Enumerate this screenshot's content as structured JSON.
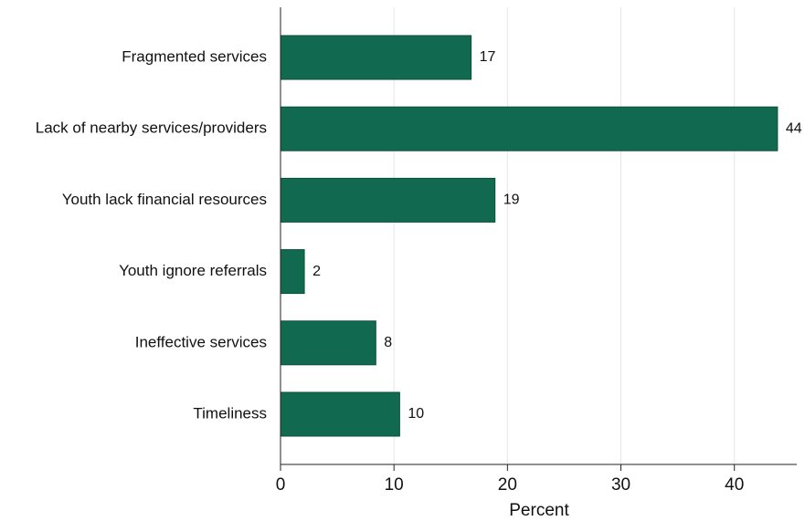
{
  "chart_data": {
    "type": "bar",
    "orientation": "horizontal",
    "categories": [
      "Fragmented services",
      "Lack of nearby services/providers",
      "Youth lack financial resources",
      "Youth ignore referrals",
      "Ineffective services",
      "Timeliness"
    ],
    "values": [
      16.8,
      43.8,
      18.9,
      2.1,
      8.4,
      10.5
    ],
    "data_labels": [
      "17",
      "44",
      "19",
      "2",
      "8",
      "10"
    ],
    "title": "",
    "xlabel": "Percent",
    "ylabel": "",
    "xlim": [
      0,
      45.5
    ],
    "x_ticks": [
      0,
      10,
      20,
      30,
      40
    ],
    "x_tick_labels": [
      "0",
      "10",
      "20",
      "30",
      "40"
    ],
    "grid": "vertical",
    "colors": {
      "bar": "#116a50",
      "bar_edge": "#0b4f3b",
      "grid": "#e6e6e6",
      "axis": "#222222"
    }
  }
}
